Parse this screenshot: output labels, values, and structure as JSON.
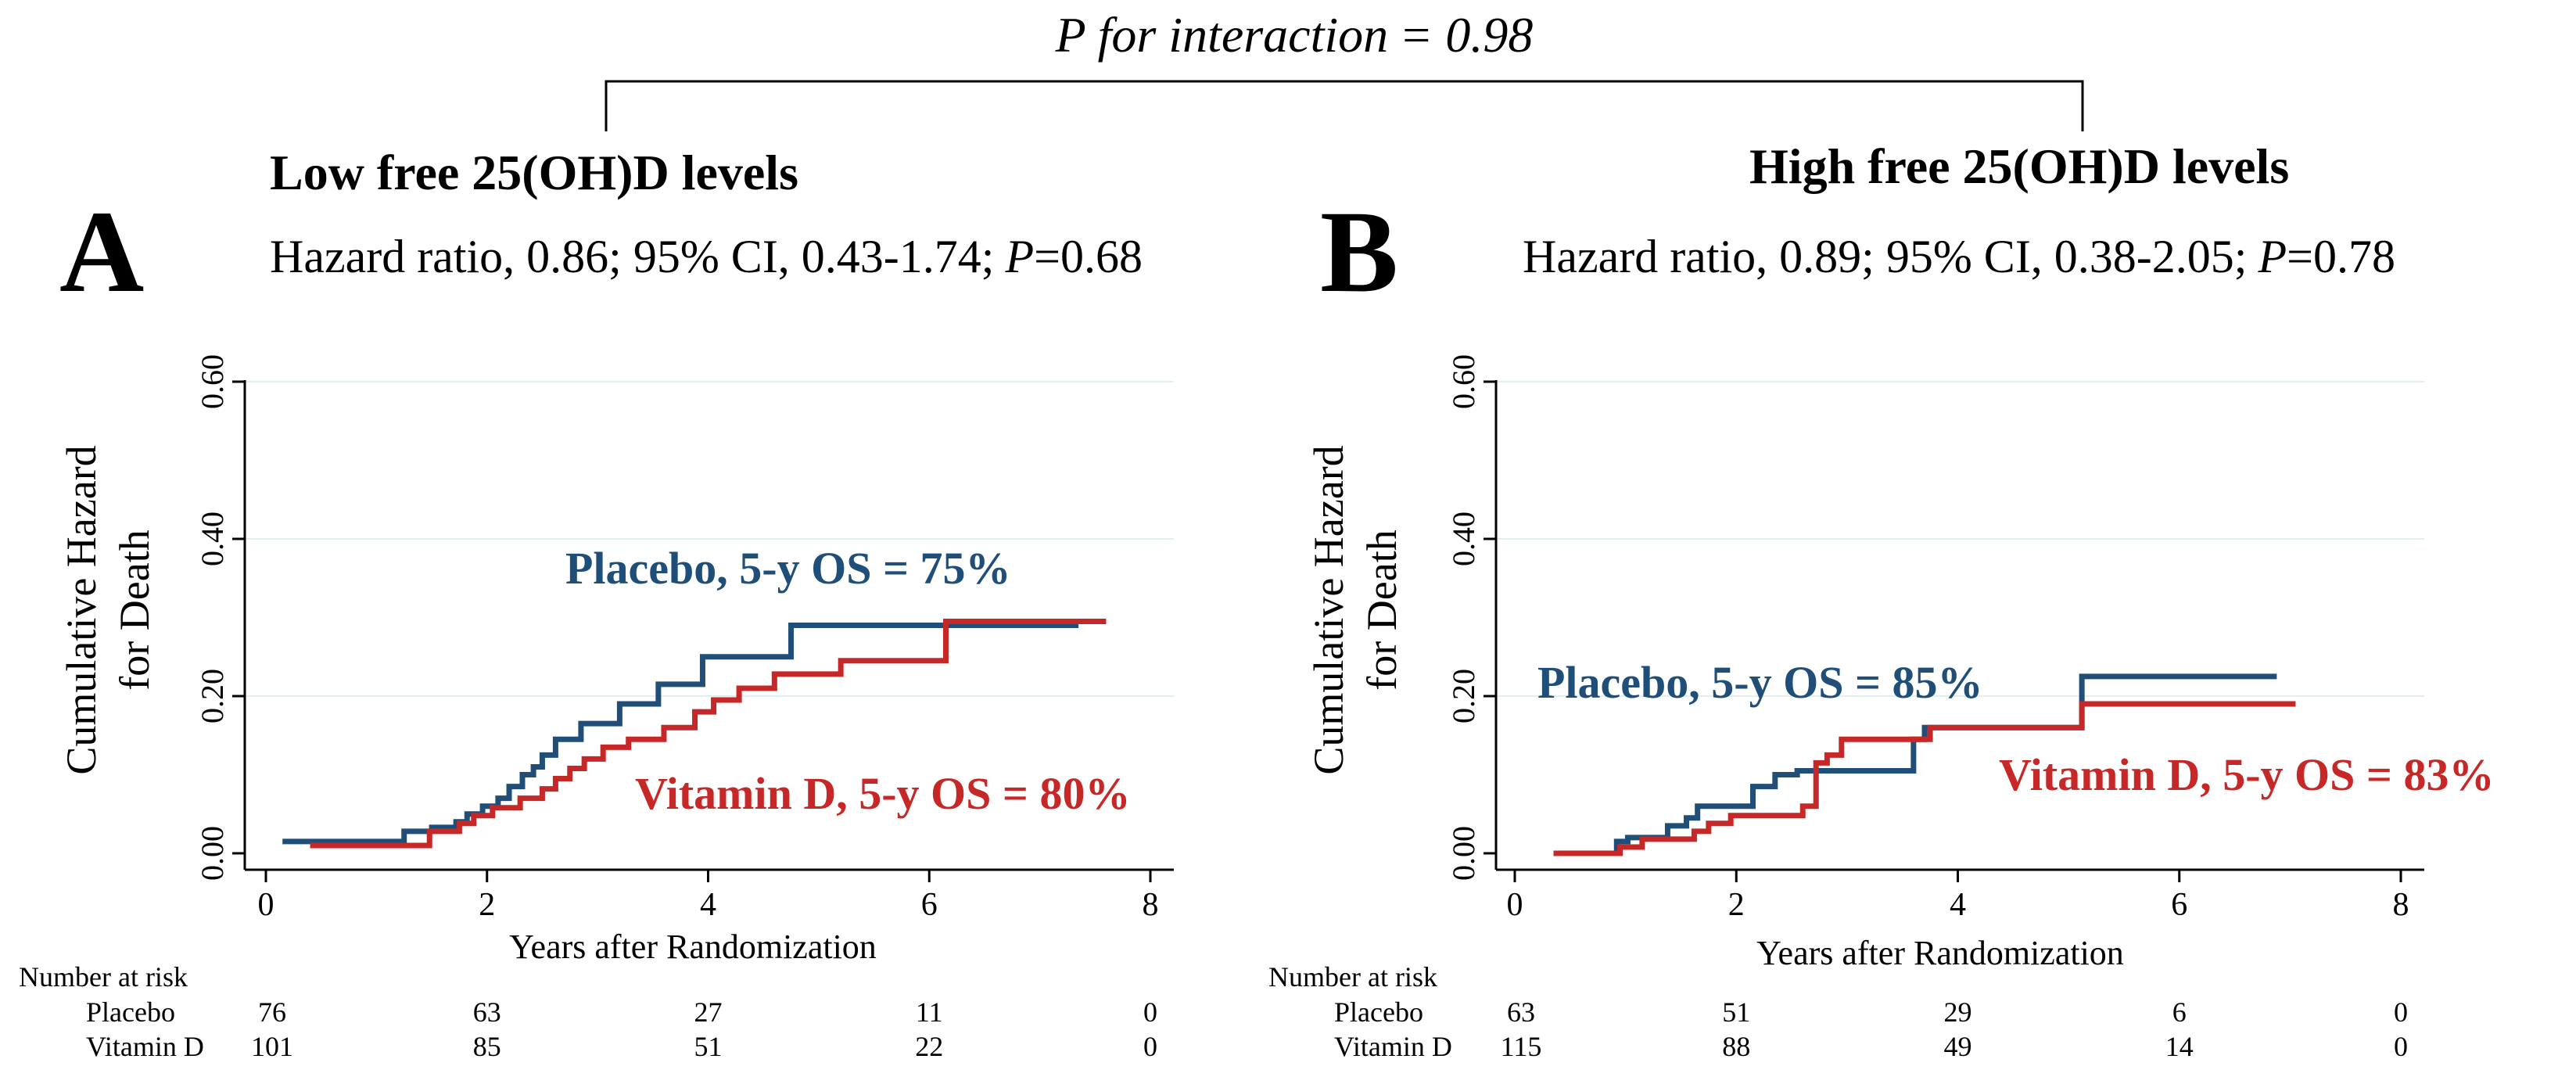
{
  "interaction": {
    "prefix": "P for interaction",
    "value": "= 0.98"
  },
  "chart_data": [
    {
      "type": "line",
      "panel_letter": "A",
      "title": "Low free 25(OH)D levels",
      "hr_text": "Hazard ratio, 0.86; 95% CI, 0.43-1.74;",
      "p_label": "P",
      "p_value": "=0.68",
      "xlabel": "Years after Randomization",
      "ylabel_line1": "Cumulative Hazard",
      "ylabel_line2": "for Death",
      "xlim": [
        0,
        8
      ],
      "ylim": [
        0,
        0.6
      ],
      "xticks": [
        0,
        2,
        4,
        6,
        8
      ],
      "xtick_labels": [
        "0",
        "2",
        "4",
        "6",
        "8"
      ],
      "yticks": [
        0,
        0.2,
        0.4,
        0.6
      ],
      "ytick_labels": [
        "0.00",
        "0.20",
        "0.40",
        "0.60"
      ],
      "grid": true,
      "series": [
        {
          "name": "Placebo",
          "label": "Placebo, 5-y OS = 75%",
          "color": "#1f4e79",
          "x": [
            0.15,
            1.25,
            1.5,
            1.72,
            1.82,
            1.96,
            2.1,
            2.2,
            2.32,
            2.42,
            2.5,
            2.62,
            2.85,
            3.2,
            3.55,
            3.95,
            4.75,
            7.35
          ],
          "y": [
            0.015,
            0.028,
            0.033,
            0.04,
            0.05,
            0.06,
            0.07,
            0.085,
            0.1,
            0.11,
            0.125,
            0.145,
            0.165,
            0.19,
            0.215,
            0.25,
            0.29,
            0.29
          ]
        },
        {
          "name": "Vitamin D",
          "label": "Vitamin D, 5-y OS = 80%",
          "color": "#c62828",
          "x": [
            0.4,
            1.48,
            1.75,
            1.88,
            2.05,
            2.3,
            2.5,
            2.62,
            2.75,
            2.88,
            3.05,
            3.28,
            3.6,
            3.88,
            4.05,
            4.28,
            4.6,
            5.2,
            6.15,
            7.6
          ],
          "y": [
            0.01,
            0.028,
            0.038,
            0.048,
            0.058,
            0.07,
            0.082,
            0.095,
            0.108,
            0.12,
            0.135,
            0.145,
            0.16,
            0.18,
            0.195,
            0.21,
            0.228,
            0.245,
            0.295,
            0.295
          ]
        }
      ],
      "risk_table": {
        "header": "Number at risk",
        "x": [
          0,
          2,
          4,
          6,
          8
        ],
        "rows": [
          {
            "name": "Placebo",
            "counts": [
              "76",
              "63",
              "27",
              "11",
              "0"
            ]
          },
          {
            "name": "Vitamin D",
            "counts": [
              "101",
              "85",
              "51",
              "22",
              "0"
            ]
          }
        ]
      }
    },
    {
      "type": "line",
      "panel_letter": "B",
      "title": "High free 25(OH)D levels",
      "hr_text": "Hazard ratio, 0.89; 95% CI, 0.38-2.05;",
      "p_label": "P",
      "p_value": "=0.78",
      "xlabel": "Years after Randomization",
      "ylabel_line1": "Cumulative Hazard",
      "ylabel_line2": "for Death",
      "xlim": [
        0,
        8
      ],
      "ylim": [
        0,
        0.6
      ],
      "xticks": [
        0,
        2,
        4,
        6,
        8
      ],
      "xtick_labels": [
        "0",
        "2",
        "4",
        "6",
        "8"
      ],
      "yticks": [
        0,
        0.2,
        0.4,
        0.6
      ],
      "ytick_labels": [
        "0.00",
        "0.20",
        "0.40",
        "0.60"
      ],
      "grid": true,
      "series": [
        {
          "name": "Placebo",
          "label": "Placebo, 5-y OS = 85%",
          "color": "#1f4e79",
          "x": [
            0.35,
            0.92,
            1.02,
            1.38,
            1.55,
            1.65,
            2.15,
            2.35,
            2.55,
            3.6,
            3.7,
            5.12,
            6.88
          ],
          "y": [
            0.0,
            0.015,
            0.02,
            0.035,
            0.045,
            0.06,
            0.085,
            0.1,
            0.105,
            0.145,
            0.16,
            0.225,
            0.225
          ]
        },
        {
          "name": "Vitamin D",
          "label": "Vitamin D, 5-y OS = 83%",
          "color": "#c62828",
          "x": [
            0.35,
            0.95,
            1.15,
            1.62,
            1.75,
            1.95,
            2.6,
            2.72,
            2.82,
            2.95,
            3.65,
            3.75,
            5.12,
            7.05
          ],
          "y": [
            0.0,
            0.008,
            0.018,
            0.028,
            0.038,
            0.048,
            0.06,
            0.115,
            0.125,
            0.145,
            0.145,
            0.16,
            0.19,
            0.19
          ]
        }
      ],
      "risk_table": {
        "header": "Number at risk",
        "x": [
          0,
          2,
          4,
          6,
          8
        ],
        "rows": [
          {
            "name": "Placebo",
            "counts": [
              "63",
              "51",
              "29",
              "6",
              "0"
            ]
          },
          {
            "name": "Vitamin D",
            "counts": [
              "115",
              "88",
              "49",
              "14",
              "0"
            ]
          }
        ]
      }
    }
  ]
}
